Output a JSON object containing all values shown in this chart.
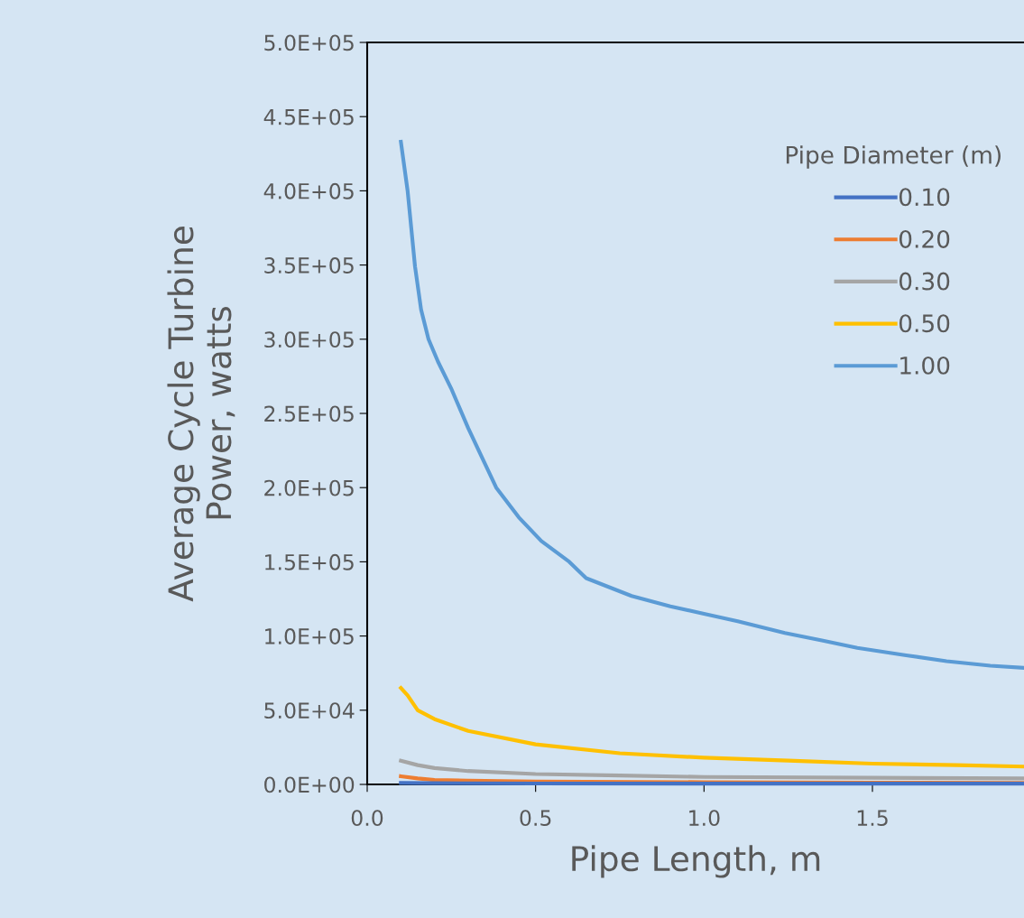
{
  "chart_data": {
    "type": "line",
    "xlabel": "Pipe Length, m",
    "ylabel": "Average Cycle Turbine\nPower, watts",
    "legend_title": "Pipe Diameter (m)",
    "legend": "top right",
    "grid": false,
    "marker": "none",
    "line_style": "solid",
    "xlim": [
      0,
      1.95
    ],
    "xticks": [
      {
        "value": 0,
        "label": "0.0"
      },
      {
        "value": 0.5,
        "label": "0.5"
      },
      {
        "value": 1.0,
        "label": "1.0"
      },
      {
        "value": 1.5,
        "label": "1.5"
      }
    ],
    "ylim": [
      0,
      500000
    ],
    "yticks": [
      {
        "value": 0,
        "label": "0.0E+00"
      },
      {
        "value": 50000,
        "label": "5.0E+04"
      },
      {
        "value": 100000,
        "label": "1.0E+05"
      },
      {
        "value": 150000,
        "label": "1.5E+05"
      },
      {
        "value": 200000,
        "label": "2.0E+05"
      },
      {
        "value": 250000,
        "label": "2.5E+05"
      },
      {
        "value": 300000,
        "label": "3.0E+05"
      },
      {
        "value": 350000,
        "label": "3.5E+05"
      },
      {
        "value": 400000,
        "label": "4.0E+05"
      },
      {
        "value": 450000,
        "label": "4.5E+05"
      },
      {
        "value": 500000,
        "label": "5.0E+05"
      }
    ],
    "series": [
      {
        "name": "0.10",
        "color": "#4472c4",
        "x": [
          0.1,
          0.2,
          0.5,
          1.0,
          1.5,
          1.95
        ],
        "values": [
          1000,
          800,
          600,
          500,
          500,
          500
        ]
      },
      {
        "name": "0.20",
        "color": "#ed7d31",
        "x": [
          0.1,
          0.15,
          0.2,
          0.3,
          0.5,
          1.0,
          1.5,
          1.95
        ],
        "values": [
          5500,
          4000,
          3000,
          2500,
          2000,
          1500,
          1200,
          1000
        ]
      },
      {
        "name": "0.30",
        "color": "#a5a5a5",
        "x": [
          0.1,
          0.15,
          0.2,
          0.3,
          0.5,
          0.75,
          1.0,
          1.5,
          1.95
        ],
        "values": [
          16000,
          13000,
          11000,
          9000,
          7000,
          6000,
          5000,
          4500,
          4000
        ]
      },
      {
        "name": "0.50",
        "color": "#ffc000",
        "x": [
          0.1,
          0.12,
          0.15,
          0.2,
          0.3,
          0.5,
          0.75,
          1.0,
          1.25,
          1.5,
          1.75,
          1.95
        ],
        "values": [
          65000,
          60000,
          50000,
          44000,
          36000,
          27000,
          21000,
          18000,
          16000,
          14000,
          13000,
          12000
        ]
      },
      {
        "name": "1.00",
        "color": "#5b9bd5",
        "x": [
          0.1,
          0.12,
          0.142,
          0.16,
          0.182,
          0.21,
          0.249,
          0.3,
          0.383,
          0.45,
          0.517,
          0.6,
          0.65,
          0.785,
          0.9,
          1.0,
          1.1,
          1.24,
          1.35,
          1.455,
          1.6,
          1.72,
          1.85,
          1.95
        ],
        "values": [
          433000,
          400000,
          349000,
          320000,
          300000,
          285000,
          267000,
          240000,
          200000,
          180000,
          164000,
          150000,
          139000,
          127000,
          120000,
          115000,
          110000,
          102000,
          97000,
          92000,
          87000,
          83000,
          80000,
          78500
        ]
      }
    ]
  }
}
